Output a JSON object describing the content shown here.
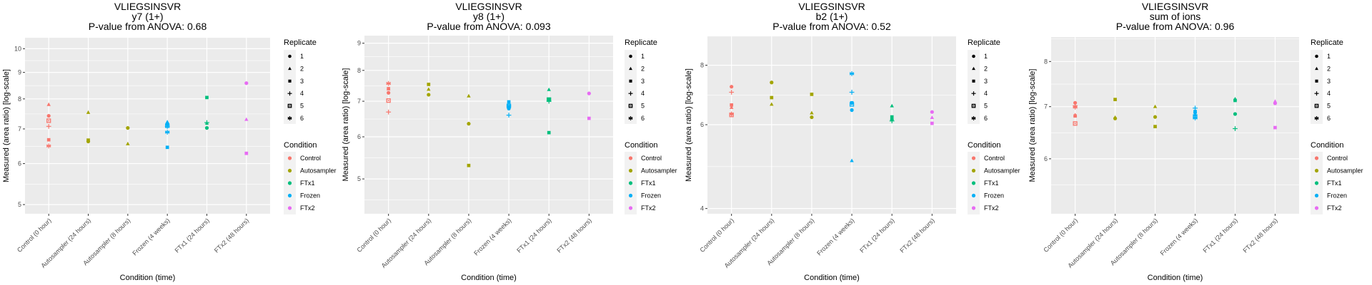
{
  "figure": {
    "panel_count": 4
  },
  "legend": {
    "shape_title": "Replicate",
    "shape_items": [
      {
        "label": "1",
        "shape": "circle"
      },
      {
        "label": "2",
        "shape": "triangle"
      },
      {
        "label": "3",
        "shape": "square"
      },
      {
        "label": "4",
        "shape": "plus"
      },
      {
        "label": "5",
        "shape": "boxed-x"
      },
      {
        "label": "6",
        "shape": "asterisk"
      }
    ],
    "color_title": "Condition",
    "color_items": [
      {
        "label": "Control",
        "color": "#F8766D"
      },
      {
        "label": "Autosampler",
        "color": "#A3A500"
      },
      {
        "label": "FTx1",
        "color": "#00BF7D"
      },
      {
        "label": "Frozen",
        "color": "#00B0F6"
      },
      {
        "label": "FTx2",
        "color": "#E76BF3"
      }
    ]
  },
  "chart_data": [
    {
      "type": "scatter",
      "title": [
        "VLIEGSINSVR",
        "y7 (1+)",
        "P-value from ANOVA: 0.68"
      ],
      "xlabel": "Condition (time)",
      "ylabel": "Measured (area ratio) [log-scale]",
      "yscale": "log",
      "ylim": [
        4.8,
        10.5
      ],
      "yticks": [
        5,
        6,
        7,
        8,
        9,
        10
      ],
      "categories": [
        "Control (0 hour)",
        "Autosampler (24 hours)",
        "Autosampler (8 hours)",
        "Frozen (4 weeks)",
        "FTx1 (24 hours)",
        "FTx2 (48 hours)"
      ],
      "category_condition": [
        "Control",
        "Autosampler",
        "Autosampler",
        "Frozen",
        "FTx1",
        "FTx2"
      ],
      "grid": true,
      "legend_position": "right",
      "points": [
        [
          7.42,
          7.8,
          6.67,
          7.08,
          7.26,
          6.49
        ],
        [
          6.62,
          7.53,
          6.66,
          null,
          null,
          null
        ],
        [
          7.03,
          6.55,
          null,
          null,
          null,
          null
        ],
        [
          7.15,
          7.22,
          6.45,
          7.08,
          7.1,
          6.9
        ],
        [
          7.03,
          7.18,
          8.05,
          7.2,
          null,
          null
        ],
        [
          8.58,
          7.3,
          6.28,
          null,
          null,
          null
        ]
      ]
    },
    {
      "type": "scatter",
      "title": [
        "VLIEGSINSVR",
        "y8 (1+)",
        "P-value from ANOVA: 0.093"
      ],
      "xlabel": "Condition (time)",
      "ylabel": "Measured (area ratio) [log-scale]",
      "yscale": "log",
      "ylim": [
        4.3,
        9.3
      ],
      "yticks": [
        5,
        6,
        7,
        8,
        9
      ],
      "categories": [
        "Control (0 hour)",
        "Autosampler (24 hours)",
        "Autosampler (8 hours)",
        "Frozen (4 weeks)",
        "FTx1 (24 hours)",
        "FTx2 (48 hours)"
      ],
      "category_condition": [
        "Control",
        "Autosampler",
        "Autosampler",
        "Frozen",
        "FTx1",
        "FTx2"
      ],
      "grid": true,
      "legend_position": "right",
      "points": [
        [
          7.26,
          7.39,
          7.39,
          6.68,
          7.02,
          7.56
        ],
        [
          7.2,
          7.37,
          7.53,
          null,
          null,
          null
        ],
        [
          6.35,
          7.16,
          5.3,
          null,
          null,
          null
        ],
        [
          6.78,
          6.83,
          6.98,
          6.59,
          6.86,
          6.86
        ],
        [
          7.06,
          7.36,
          6.11,
          7.0,
          7.05,
          null
        ],
        [
          7.24,
          null,
          6.5,
          null,
          null,
          null
        ]
      ]
    },
    {
      "type": "scatter",
      "title": [
        "VLIEGSINSVR",
        "b2 (1+)",
        "P-value from ANOVA: 0.52"
      ],
      "xlabel": "Condition (time)",
      "ylabel": "Measured (area ratio) [log-scale]",
      "yscale": "log",
      "ylim": [
        3.9,
        9.2
      ],
      "yticks": [
        4,
        6,
        8
      ],
      "categories": [
        "Control (0 hour)",
        "Autosampler (24 hours)",
        "Autosampler (8 hours)",
        "Frozen (4 weeks)",
        "FTx1 (24 hours)",
        "FTx2 (48 hours)"
      ],
      "category_condition": [
        "Control",
        "Autosampler",
        "Autosampler",
        "Frozen",
        "FTx1",
        "FTx2"
      ],
      "grid": true,
      "legend_position": "right",
      "points": [
        [
          7.21,
          6.52,
          6.6,
          7.02,
          6.29,
          6.32
        ],
        [
          7.36,
          6.62,
          6.84,
          null,
          null,
          null
        ],
        [
          6.22,
          6.35,
          6.95,
          null,
          null,
          null
        ],
        [
          6.44,
          5.04,
          6.67,
          7.02,
          6.62,
          7.68
        ],
        [
          6.15,
          6.57,
          6.23,
          6.11,
          null,
          null
        ],
        [
          6.38,
          6.21,
          6.04,
          null,
          null,
          null
        ]
      ]
    },
    {
      "type": "scatter",
      "title": [
        "VLIEGSINSVR",
        "sum of ions",
        "P-value from ANOVA: 0.96"
      ],
      "xlabel": "Condition (time)",
      "ylabel": "Measured (area ratio) [log-scale]",
      "yscale": "log",
      "ylim": [
        5.1,
        8.6
      ],
      "yticks": [
        6,
        7,
        8
      ],
      "categories": [
        "Control (0 hour)",
        "Autosampler (24 hours)",
        "Autosampler (8 hours)",
        "Frozen (4 weeks)",
        "FTx1 (24 hours)",
        "FTx2 (48 hours)"
      ],
      "category_condition": [
        "Control",
        "Autosampler",
        "Autosampler",
        "Frozen",
        "FTx1",
        "FTx2"
      ],
      "grid": true,
      "legend_position": "right",
      "points": [
        [
          7.08,
          6.83,
          6.81,
          7.02,
          6.66,
          6.99
        ],
        [
          6.76,
          6.78,
          7.15,
          null,
          null,
          null
        ],
        [
          6.79,
          7.0,
          6.6,
          null,
          null,
          null
        ],
        [
          6.88,
          6.83,
          6.9,
          6.97,
          6.8,
          6.77
        ],
        [
          6.85,
          7.16,
          7.13,
          6.56,
          null,
          null
        ],
        [
          7.07,
          7.11,
          6.58,
          null,
          null,
          null
        ]
      ]
    }
  ]
}
